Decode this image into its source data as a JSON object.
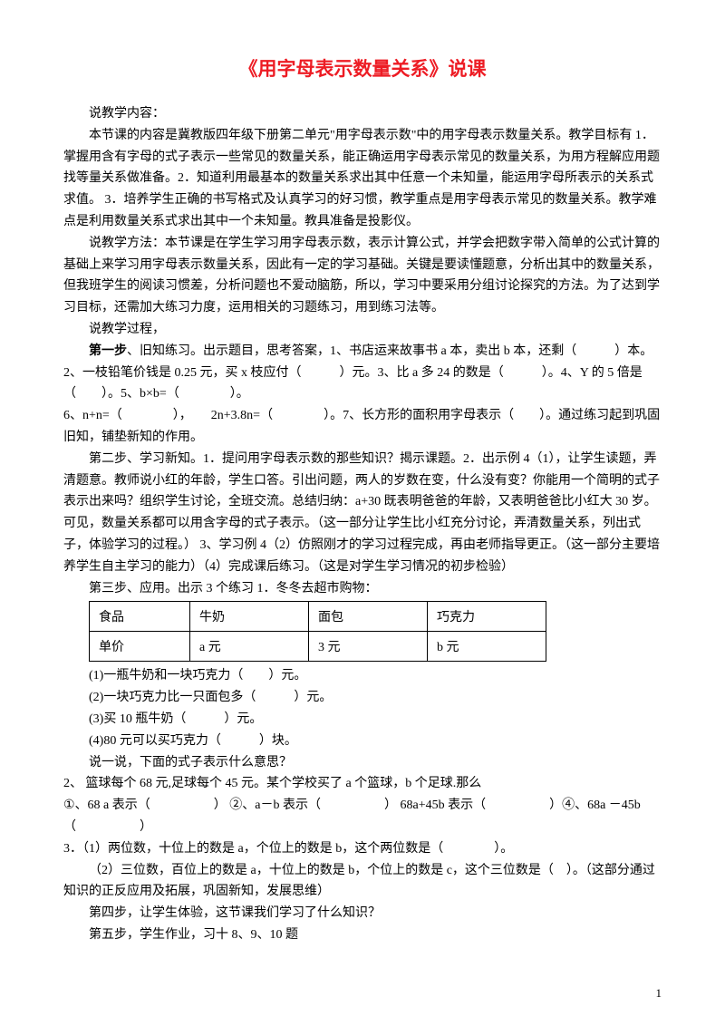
{
  "title": "《用字母表示数量关系》说课",
  "p1": "说教学内容：",
  "p2": "本节课的内容是冀教版四年级下册第二单元\"用字母表示数\"中的用字母表示数量关系。教学目标有 1．掌握用含有字母的式子表示一些常见的数量关系，能正确运用字母表示常见的数量关系，为用方程解应用题找等量关系做准备。2．知道利用最基本的数量关系求出其中任意一个未知量，能运用字母所表示的关系式求值。  3．培养学生正确的书写格式及认真学习的好习惯，教学重点是用字母表示常见的数量关系。教学难点是利用数量关系式求出其中一个未知量。教具准备是投影仪。",
  "p3": "说教学方法：本节课是在学生学习用字母表示数，表示计算公式，并学会把数字带入简单的公式计算的基础上来学习用字母表示数量关系，因此有一定的学习基础。关键是要读懂题意，分析出其中的数量关系，但我班学生的阅读习惯差，分析问题也不爱动脑筋，所以，学习中要采用分组讨论探究的方法。为了达到学习目标，还需加大练习力度，运用相关的习题练习，用到练习法等。",
  "p4": "说教学过程，",
  "p5a": "第一步",
  "p5b": "、旧知练习。出示题目，思考答案，1、书店运来故事书 a 本，卖出 b 本，还剩（　　　）本。2、一枝铅笔价钱是 0.25 元，买 x 枝应付（　　　）元。3、比 a 多 24 的数是（　　　）。4、Y 的 5 倍是（　　）。5、b×b=（　　　　）。",
  "p6": "6、n+n=（　　　　），　　2n+3.8n=（　　　　）。7、长方形的面积用字母表示（　　）。通过练习起到巩固旧知，铺垫新知的作用。",
  "p7": "第二步、学习新知。1．提问用字母表示数的那些知识？揭示课题。2．出示例 4（1），让学生读题，弄清题意。教师说小红的年龄，学生口答。引出问题，两人的岁数在变，什么没有变？你能用一个简明的式子表示出来吗？组织学生讨论，全班交流。总结归纳：a+30 既表明爸爸的年龄，又表明爸爸比小红大 30 岁。可见，数量关系都可以用含字母的式子表示。（这一部分让学生比小红充分讨论，弄清数量关系，列出式子，体验学习的过程。） 3、学习例 4（2）仿照刚才的学习过程完成，再由老师指导更正。（这一部分主要培养学生自主学习的能力）（4）完成课后练习。（这是对学生学习情况的初步检验）",
  "p8": "第三步、应用。出示 3 个练习 1．冬冬去超市购物：",
  "table": {
    "rows": [
      [
        "食品",
        "牛奶",
        "面包",
        "巧克力"
      ],
      [
        "单价",
        "a 元",
        "3 元",
        "b 元"
      ]
    ]
  },
  "q1": "(1)一瓶牛奶和一块巧克力（　　）元。",
  "q2": "(2)一块巧克力比一只面包多（　　　）元。",
  "q3": "(3)买 10 瓶牛奶（　　　）元。",
  "q4": "(4)80 元可以买巧克力（　　　）块。",
  "q5": "说一说，下面的式子表示什么意思？",
  "q6": "2、  篮球每个 68 元,足球每个 45 元。某个学校买了 a 个篮球，b 个足球.那么",
  "q7": "①、68 a 表示（　　　　　）  ②、a－b 表示（　　　　　）  68a+45b 表示（　　　　　）④、68a －45b（　　　　　）",
  "q8": "3．（1）两位数，十位上的数是 a，个位上的数是 b，这个两位数是（　　　　）。",
  "q9": "（2）三位数，百位上的数是 a，十位上的数是 b，个位上的数是 c，这个三位数是（　）。（这部分通过知识的正反应用及拓展，巩固新知，发展思维）",
  "p9": "第四步，让学生体验，这节课我们学习了什么知识？",
  "p10": "第五步，学生作业，习十 8、9、10 题",
  "pagenum": "1"
}
